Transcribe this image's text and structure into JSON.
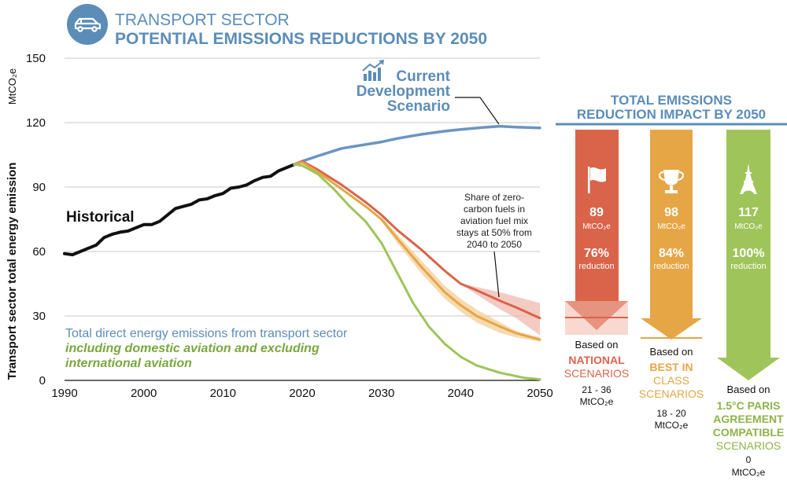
{
  "header": {
    "title_line1": "TRANSPORT SECTOR",
    "title_line2": "POTENTIAL EMISSIONS REDUCTIONS BY 2050",
    "icon": "car-icon"
  },
  "colors": {
    "title_blue": "#5b8db8",
    "historical": "#111111",
    "current": "#6a95c4",
    "national": "#d9644a",
    "national_band": "#f0b9ad",
    "best": "#e6a646",
    "best_band": "#f3cf97",
    "paris": "#9fc45a",
    "grid": "#c8c8c8"
  },
  "chart_data": {
    "type": "line",
    "ylabel": "Transport sector total  energy emission",
    "yunit": "MtCO₂e",
    "ylim": [
      0,
      150
    ],
    "xlim": [
      1990,
      2050
    ],
    "x_ticks": [
      "1990",
      "2000",
      "2010",
      "2020",
      "2030",
      "2040",
      "2050"
    ],
    "y_ticks": [
      "0",
      "30",
      "60",
      "90",
      "120",
      "150"
    ],
    "series": [
      {
        "name": "Historical",
        "color": "#111111",
        "x": [
          1990,
          1991,
          1992,
          1993,
          1994,
          1995,
          1996,
          1997,
          1998,
          1999,
          2000,
          2001,
          2002,
          2003,
          2004,
          2005,
          2006,
          2007,
          2008,
          2009,
          2010,
          2011,
          2012,
          2013,
          2014,
          2015,
          2016,
          2017,
          2018,
          2019
        ],
        "y": [
          59,
          58.5,
          60,
          61.5,
          63,
          66.5,
          68,
          69,
          69.5,
          71,
          72.5,
          72.5,
          74,
          77,
          80,
          81,
          82,
          84,
          84.5,
          86,
          87,
          89.5,
          90,
          91,
          93,
          94.5,
          95,
          97.5,
          99,
          100.5
        ]
      },
      {
        "name": "Current Development Scenario",
        "color": "#6a95c4",
        "x": [
          2019,
          2020,
          2022,
          2025,
          2028,
          2030,
          2032,
          2035,
          2038,
          2040,
          2043,
          2045,
          2047,
          2050
        ],
        "y": [
          100.5,
          102,
          104.5,
          108,
          109.8,
          111,
          112.6,
          114.5,
          116,
          116.8,
          117.8,
          118.3,
          117.9,
          117.5
        ]
      },
      {
        "name": "National Scenarios",
        "color": "#d9644a",
        "x": [
          2019,
          2020,
          2022,
          2025,
          2028,
          2030,
          2032,
          2035,
          2038,
          2040,
          2042,
          2045,
          2047,
          2050
        ],
        "y": [
          100.5,
          102,
          98,
          91,
          83,
          77,
          70,
          61,
          51,
          45,
          42,
          37,
          34,
          29
        ]
      },
      {
        "name": "Best in Class Scenarios",
        "color": "#e6a646",
        "x": [
          2019,
          2020,
          2022,
          2025,
          2028,
          2030,
          2032,
          2035,
          2038,
          2040,
          2042,
          2045,
          2047,
          2050
        ],
        "y": [
          100.5,
          101.5,
          97,
          89,
          81,
          75,
          66,
          53,
          41,
          35,
          30,
          25,
          22,
          19
        ]
      },
      {
        "name": "1.5°C Paris Agreement Compatible Scenarios",
        "color": "#9fc45a",
        "x": [
          2019,
          2020,
          2022,
          2024,
          2026,
          2028,
          2030,
          2032,
          2034,
          2036,
          2038,
          2040,
          2042,
          2045,
          2048,
          2050
        ],
        "y": [
          100.5,
          100,
          96,
          89,
          81,
          74,
          64,
          50,
          36,
          25,
          17,
          11,
          7,
          3.5,
          1.2,
          0.5
        ]
      }
    ],
    "bands": [
      {
        "name": "National Scenarios range",
        "color": "#f0b9ad",
        "x": [
          2040,
          2042,
          2045,
          2047,
          2050
        ],
        "upper": [
          45,
          43.5,
          41,
          39,
          36
        ],
        "lower": [
          45,
          40,
          33,
          29,
          21
        ]
      },
      {
        "name": "Best in Class range",
        "color": "#f3cf97",
        "x": [
          2030,
          2032,
          2035,
          2038,
          2040,
          2042,
          2045,
          2047,
          2050
        ],
        "upper": [
          76,
          68,
          56,
          44,
          38,
          33,
          27,
          23,
          20
        ],
        "lower": [
          74,
          64,
          50,
          38,
          32,
          27,
          22,
          20,
          18
        ]
      }
    ],
    "grid": true
  },
  "annotations": {
    "historical_label": "Historical",
    "current_label": [
      "Current",
      "Development",
      "Scenario"
    ],
    "aviation_note": [
      "Share of zero-",
      "carbon fuels in",
      "aviation fuel mix",
      "stays at 50% from",
      "2040 to 2050"
    ],
    "legend_line1": "Total direct energy emissions from transport sector",
    "legend_line2": "including domestic aviation and excluding",
    "legend_line3": "international aviation"
  },
  "impact_panel": {
    "title_line1": "TOTAL EMISSIONS",
    "title_line2": "REDUCTION IMPACT BY 2050",
    "arrows": [
      {
        "key": "national",
        "icon": "flag-icon",
        "value": "89",
        "unit": "MtCO₂e",
        "percent": "76%",
        "percent_label": "reduction",
        "based_on": "Based on",
        "scenario_lines_bold": [
          "NATIONAL"
        ],
        "scenario_lines": [
          "SCENARIOS"
        ],
        "range": "21 - 36",
        "range_unit": "MtCO₂e",
        "remaining_fraction": 0.24
      },
      {
        "key": "best",
        "icon": "trophy-icon",
        "value": "98",
        "unit": "MtCO₂e",
        "percent": "84%",
        "percent_label": "reduction",
        "based_on": "Based on",
        "scenario_lines_bold": [
          "BEST IN"
        ],
        "scenario_lines": [
          "CLASS",
          "SCENARIOS"
        ],
        "range": "18 - 20",
        "range_unit": "MtCO₂e",
        "remaining_fraction": 0.16
      },
      {
        "key": "paris",
        "icon": "eiffel-tower-icon",
        "value": "117",
        "unit": "MtCO₂e",
        "percent": "100%",
        "percent_label": "reduction",
        "based_on": "Based on",
        "scenario_lines_bold": [
          "1.5°C PARIS",
          "AGREEMENT",
          "COMPATIBLE"
        ],
        "scenario_lines": [
          "SCENARIOS"
        ],
        "range": "0",
        "range_unit": "MtCO₂e",
        "remaining_fraction": 0.0
      }
    ]
  }
}
